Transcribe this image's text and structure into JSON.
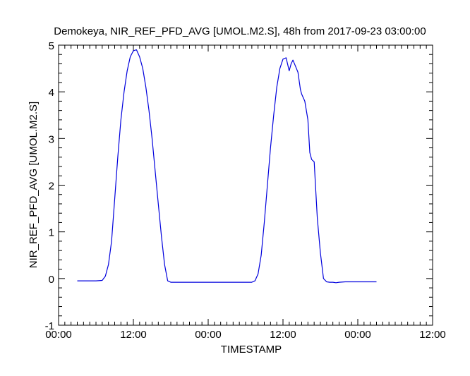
{
  "chart_data": {
    "type": "line",
    "title": "Demokeya, NIR_REF_PFD_AVG [UMOL.M2.S], 48h from  2017-09-23 03:00:00",
    "xlabel": "TIMESTAMP",
    "ylabel": "NIR_REF_PFD_AVG [UMOL.M2.S]",
    "x_unit": "hours",
    "xlim": [
      0,
      60
    ],
    "ylim": [
      -1,
      5
    ],
    "x_ticks": [
      {
        "value": 0,
        "label": "00:00"
      },
      {
        "value": 12,
        "label": "12:00"
      },
      {
        "value": 24,
        "label": "00:00"
      },
      {
        "value": 36,
        "label": "12:00"
      },
      {
        "value": 48,
        "label": "00:00"
      },
      {
        "value": 60,
        "label": "12:00"
      }
    ],
    "y_ticks": [
      {
        "value": -1,
        "label": "-1"
      },
      {
        "value": 0,
        "label": "0"
      },
      {
        "value": 1,
        "label": "1"
      },
      {
        "value": 2,
        "label": "2"
      },
      {
        "value": 3,
        "label": "3"
      },
      {
        "value": 4,
        "label": "4"
      },
      {
        "value": 5,
        "label": "5"
      }
    ],
    "grid": false,
    "line_color": "#0000dd",
    "series": [
      {
        "x": [
          3,
          4,
          5,
          6,
          7,
          7.5,
          8,
          8.5,
          9,
          9.5,
          10,
          10.5,
          11,
          11.5,
          12,
          12.5,
          13,
          13.5,
          14,
          14.5,
          15,
          15.5,
          16,
          16.5,
          17,
          17.5,
          18,
          18.5,
          19,
          20,
          22,
          24,
          26,
          28,
          30,
          31,
          31.5,
          32,
          32.5,
          33,
          33.5,
          34,
          34.5,
          35,
          35.5,
          36,
          36.5,
          37,
          37.3,
          37.6,
          38,
          38.4,
          38.8,
          39,
          39.5,
          40,
          40.3,
          40.6,
          41,
          41.5,
          42,
          42.5,
          43,
          43.5,
          44,
          44.5,
          45,
          46,
          48,
          49,
          50,
          51
        ],
        "y": [
          -0.05,
          -0.05,
          -0.05,
          -0.05,
          -0.04,
          0.05,
          0.3,
          0.8,
          1.7,
          2.6,
          3.4,
          4.0,
          4.45,
          4.75,
          4.88,
          4.9,
          4.75,
          4.5,
          4.1,
          3.6,
          3.0,
          2.3,
          1.6,
          0.9,
          0.3,
          -0.05,
          -0.08,
          -0.08,
          -0.08,
          -0.08,
          -0.08,
          -0.08,
          -0.08,
          -0.08,
          -0.08,
          -0.08,
          -0.05,
          0.1,
          0.5,
          1.2,
          2.0,
          2.8,
          3.5,
          4.1,
          4.5,
          4.7,
          4.73,
          4.45,
          4.6,
          4.68,
          4.55,
          4.42,
          4.05,
          3.95,
          3.8,
          3.4,
          2.7,
          2.55,
          2.5,
          1.3,
          0.55,
          0.0,
          -0.07,
          -0.08,
          -0.08,
          -0.09,
          -0.08,
          -0.07,
          -0.07,
          -0.07,
          -0.07,
          -0.07
        ]
      }
    ]
  }
}
